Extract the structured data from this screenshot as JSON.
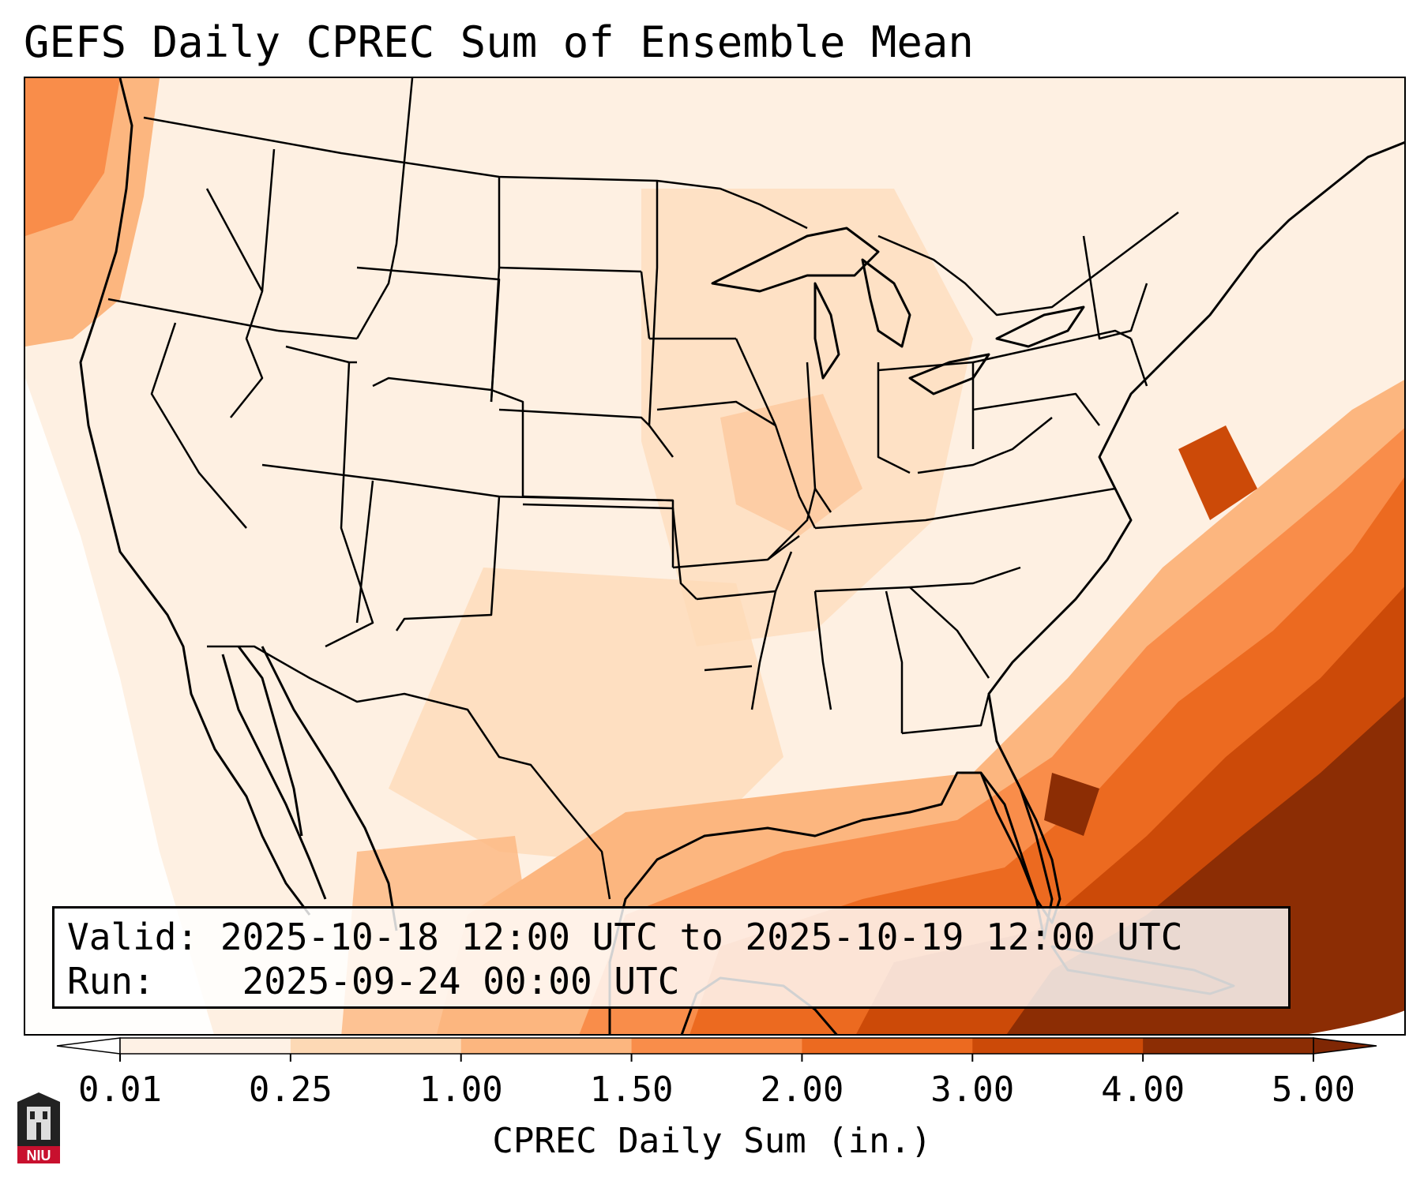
{
  "title": "GEFS Daily CPREC Sum of Ensemble Mean",
  "info": {
    "valid_label": "Valid:",
    "valid_value": "2025-10-18 12:00 UTC to 2025-10-19 12:00 UTC",
    "run_label": "Run:",
    "run_value": "2025-09-24 00:00 UTC"
  },
  "colorbar": {
    "label": "CPREC Daily Sum (in.)",
    "ticks": [
      "0.01",
      "0.25",
      "1.00",
      "1.50",
      "2.00",
      "3.00",
      "4.00",
      "5.00"
    ],
    "colors": [
      "#fef1e5",
      "#fdd9b5",
      "#fcb67f",
      "#f98d4a",
      "#ec6a20",
      "#cc4a08",
      "#8c2d04"
    ],
    "under_color": "#ffffff",
    "over_color": "#7f2704"
  },
  "logo": {
    "icon": "niu-logo-icon",
    "text": "NIU"
  }
}
